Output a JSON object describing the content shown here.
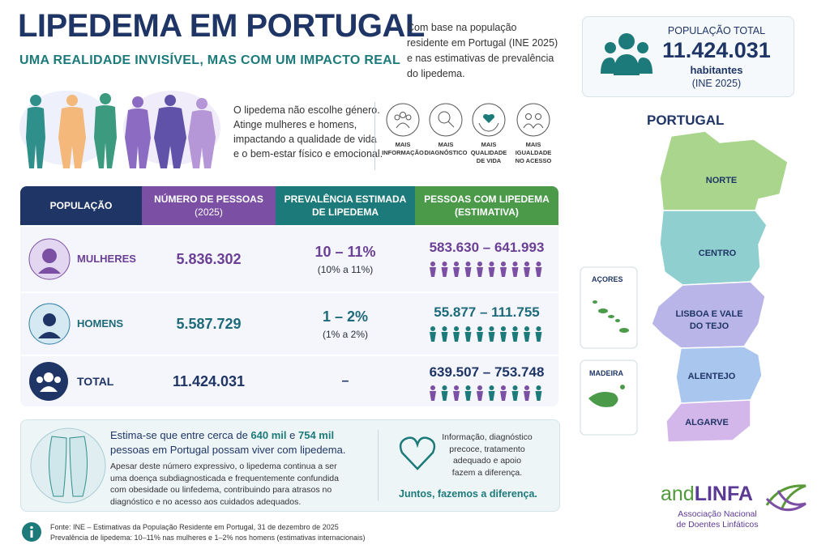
{
  "header": {
    "title": "LIPEDEMA EM PORTUGAL",
    "subtitle": "UMA REALIDADE INVISÍVEL, MAS COM UM IMPACTO REAL"
  },
  "intro": [
    "Com base na população",
    "residente em Portugal (INE 2025)",
    "e nas estimativas de prevalência",
    "do lipedema."
  ],
  "population_card": {
    "label": "POPULAÇÃO TOTAL",
    "value": "11.424.031",
    "unit": "habitantes",
    "source": "(INE 2025)"
  },
  "gender_note": [
    "O lipedema não escolhe género.",
    "Atinge mulheres e homens,",
    "impactando a qualidade de vida",
    "e o bem-estar físico e emocional."
  ],
  "icons": [
    {
      "label": [
        "MAIS",
        "INFORMAÇÃO"
      ]
    },
    {
      "label": [
        "MAIS",
        "DIAGNÓSTICO"
      ]
    },
    {
      "label": [
        "MAIS",
        "QUALIDADE",
        "DE VIDA"
      ]
    },
    {
      "label": [
        "MAIS",
        "IGUALDADE",
        "NO ACESSO"
      ]
    }
  ],
  "table": {
    "headers": [
      [
        "POPULAÇÃO"
      ],
      [
        "NÚMERO DE PESSOAS",
        "(2025)"
      ],
      [
        "PREVALÊNCIA ESTIMADA",
        "DE LIPEDEMA"
      ],
      [
        "PESSOAS COM LIPEDEMA",
        "(ESTIMATIVA)"
      ]
    ],
    "rows": [
      {
        "label": "MULHERES",
        "count": "5.836.302",
        "prevalence": "10 – 11%",
        "prevalence_detail": "(10% a 11%)",
        "estimate": "583.630 – 641.993"
      },
      {
        "label": "HOMENS",
        "count": "5.587.729",
        "prevalence": "1 – 2%",
        "prevalence_detail": "(1% a 2%)",
        "estimate": "55.877 – 111.755"
      },
      {
        "label": "TOTAL",
        "count": "11.424.031",
        "prevalence": "–",
        "estimate": "639.507 – 753.748"
      }
    ]
  },
  "summary": {
    "lead": [
      "Estima-se que entre cerca de ",
      "640 mil",
      " e ",
      "754 mil",
      "pessoas em Portugal possam viver com lipedema."
    ],
    "body": [
      "Apesar deste número expressivo, o lipedema continua a ser",
      "uma doença subdiagnosticada e frequentemente confundida",
      "com obesidade ou linfedema, contribuindo para atrasos no",
      "diagnóstico e no acesso aos cuidados adequados."
    ],
    "side": [
      "Informação, diagnóstico",
      "precoce, tratamento",
      "adequado e apoio",
      "fazem a diferença."
    ],
    "motto": "Juntos, fazemos a diferença."
  },
  "map": {
    "title": "PORTUGAL",
    "regions": [
      "NORTE",
      "CENTRO",
      [
        "LISBOA E VALE",
        "DO TEJO"
      ],
      "ALENTEJO",
      "ALGARVE"
    ],
    "islands": [
      "AÇORES",
      "MADEIRA"
    ]
  },
  "logo": {
    "prefix": "and",
    "name": "LINFA",
    "lines": [
      "Associação Nacional",
      "de Doentes Linfáticos"
    ]
  },
  "footer": [
    "Fonte: INE – Estimativas da População Residente em Portugal, 31 de dezembro de 2025",
    "Prevalência de lipedema: 10–11% nas mulheres e 1–2% nos homens (estimativas internacionais)"
  ]
}
